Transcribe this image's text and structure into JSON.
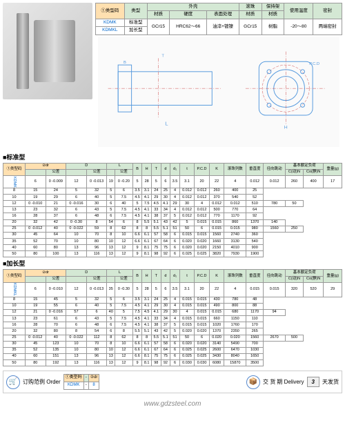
{
  "topTable": {
    "hdr1": [
      "①类型码",
      "类型",
      "外壳",
      "",
      "",
      "滚珠",
      "保持架",
      "使用温度",
      "密封"
    ],
    "hdr2": [
      "",
      "",
      "材质",
      "硬度",
      "表面处理",
      "材质",
      "材质",
      "(℃)",
      ""
    ],
    "r1": [
      "KDMK",
      "标准型",
      "GCr15",
      "HRC62～66",
      "油淬+镀镍",
      "GCr15",
      "树脂",
      "-20～80",
      "两端密封"
    ],
    "r2": [
      "KDMKL",
      "加长型",
      "",
      "",
      "",
      "",
      "",
      "",
      ""
    ]
  },
  "sec1Title": "■标准型",
  "sec2Title": "■加长型",
  "specHdr1": [
    "①类型码",
    "②dr",
    "",
    "D",
    "",
    "L",
    "",
    "B",
    "H",
    "T",
    "d",
    "d₁",
    "t",
    "P.C.D",
    "K",
    "滚珠列数",
    "垂直度",
    "径向跳动",
    "基本额定负荷",
    "",
    "重量(g)"
  ],
  "specHdr2": [
    "",
    "",
    "公差",
    "",
    "公差",
    "",
    "公差",
    "",
    "",
    "",
    "",
    "",
    "",
    "",
    "",
    "",
    "",
    "",
    "C(动)N",
    "Co(静)N",
    ""
  ],
  "spec1Rows": [
    [
      "KDMK",
      "6",
      "0 -0.009",
      "12",
      "0 -0.013",
      "19",
      "0 -0.20",
      "5",
      "28",
      "5",
      "6",
      "3.5",
      "3.1",
      "20",
      "22",
      "4",
      "0.012",
      "0.012",
      "260",
      "400",
      "17"
    ],
    [
      "",
      "8",
      "",
      "15",
      "",
      "24",
      "",
      "5",
      "32",
      "5",
      "6",
      "3.5",
      "3.1",
      "24",
      "25",
      "4",
      "0.012",
      "0.012",
      "260",
      "400",
      "25"
    ],
    [
      "",
      "10",
      "",
      "19",
      "",
      "29",
      "",
      "6",
      "40",
      "5",
      "7.5",
      "4.5",
      "4.1",
      "29",
      "30",
      "4",
      "0.012",
      "0.012",
      "370",
      "540",
      "52"
    ],
    [
      "",
      "12",
      "0 -0.010",
      "21",
      "0 -0.016",
      "30",
      "",
      "6",
      "40",
      "5",
      "7.5",
      "4.5",
      "4.1",
      "29",
      "30",
      "4",
      "0.012",
      "0.012",
      "510",
      "780",
      "50"
    ],
    [
      "",
      "13",
      "",
      "23",
      "",
      "32",
      "",
      "6",
      "43",
      "5",
      "7.5",
      "4.5",
      "4.1",
      "33",
      "34",
      "4",
      "0.012",
      "0.012",
      "500",
      "770",
      "64"
    ],
    [
      "",
      "16",
      "",
      "28",
      "",
      "37",
      "",
      "6",
      "48",
      "6",
      "7.5",
      "4.5",
      "4.1",
      "38",
      "37",
      "5",
      "0.012",
      "0.012",
      "770",
      "1170",
      "92"
    ],
    [
      "",
      "20",
      "",
      "32",
      "",
      "42",
      "0 -0.30",
      "8",
      "54",
      "6",
      "8",
      "5.5",
      "5.1",
      "43",
      "42",
      "5",
      "0.015",
      "0.015",
      "860",
      "1370",
      "140"
    ],
    [
      "",
      "25",
      "0 -0.012",
      "40",
      "0 -0.022",
      "59",
      "",
      "8",
      "62",
      "8",
      "8",
      "5.5",
      "5.1",
      "51",
      "50",
      "6",
      "0.015",
      "0.015",
      "980",
      "1560",
      "250"
    ],
    [
      "",
      "30",
      "",
      "45",
      "",
      "64",
      "",
      "10",
      "70",
      "8",
      "10",
      "6.6",
      "6.1",
      "57",
      "58",
      "6",
      "0.015",
      "0.015",
      "1560",
      "2740",
      "360"
    ],
    [
      "",
      "35",
      "",
      "52",
      "",
      "70",
      "",
      "10",
      "80",
      "10",
      "12",
      "6.6",
      "6.1",
      "67",
      "64",
      "6",
      "0.020",
      "0.020",
      "1660",
      "3130",
      "540"
    ],
    [
      "",
      "40",
      "",
      "60",
      "",
      "80",
      "",
      "13",
      "96",
      "13",
      "12",
      "9",
      "8.1",
      "75",
      "75",
      "6",
      "0.020",
      "0.020",
      "2150",
      "4010",
      "900"
    ],
    [
      "",
      "50",
      "",
      "80",
      "",
      "100",
      "",
      "13",
      "116",
      "13",
      "12",
      "9",
      "8.1",
      "98",
      "92",
      "6",
      "0.025",
      "0.025",
      "3820",
      "7930",
      "1900"
    ]
  ],
  "spec2Rows": [
    [
      "KDMKL",
      "6",
      "0 -0.010",
      "12",
      "0 -0.013",
      "35",
      "0 -0.30",
      "5",
      "28",
      "5",
      "6",
      "3.5",
      "3.1",
      "20",
      "22",
      "4",
      "0.015",
      "0.015",
      "320",
      "520",
      "29"
    ],
    [
      "",
      "8",
      "",
      "15",
      "",
      "45",
      "",
      "5",
      "32",
      "5",
      "6",
      "3.5",
      "3.1",
      "24",
      "25",
      "4",
      "0.015",
      "0.015",
      "430",
      "780",
      "48"
    ],
    [
      "",
      "10",
      "",
      "19",
      "",
      "55",
      "",
      "6",
      "40",
      "5",
      "7.5",
      "4.5",
      "4.1",
      "29",
      "30",
      "4",
      "0.015",
      "0.015",
      "490",
      "800",
      "88"
    ],
    [
      "",
      "12",
      "",
      "21",
      "0 -0.016",
      "57",
      "",
      "6",
      "40",
      "5",
      "7.5",
      "4.5",
      "4.1",
      "29",
      "30",
      "4",
      "0.015",
      "0.015",
      "680",
      "1170",
      "94"
    ],
    [
      "",
      "13",
      "",
      "23",
      "",
      "61",
      "",
      "6",
      "43",
      "5",
      "7.5",
      "4.5",
      "4.1",
      "33",
      "34",
      "4",
      "0.015",
      "0.015",
      "660",
      "1150",
      "110"
    ],
    [
      "",
      "16",
      "",
      "28",
      "",
      "70",
      "",
      "6",
      "48",
      "6",
      "7.5",
      "4.5",
      "4.1",
      "38",
      "37",
      "5",
      "0.015",
      "0.015",
      "1020",
      "1760",
      "170"
    ],
    [
      "",
      "20",
      "",
      "32",
      "",
      "80",
      "",
      "8",
      "54",
      "6",
      "8",
      "5.5",
      "5.1",
      "43",
      "42",
      "5",
      "0.020",
      "0.020",
      "1370",
      "2350",
      "265"
    ],
    [
      "",
      "25",
      "0 -0.012",
      "40",
      "0 -0.022",
      "112",
      "",
      "8",
      "62",
      "8",
      "8",
      "5.5",
      "5.1",
      "51",
      "50",
      "6",
      "0.020",
      "0.020",
      "1560",
      "2670",
      "500"
    ],
    [
      "",
      "30",
      "",
      "45",
      "",
      "123",
      "",
      "10",
      "70",
      "8",
      "10",
      "6.6",
      "6.1",
      "57",
      "58",
      "6",
      "0.020",
      "0.020",
      "3140",
      "5490",
      "700"
    ],
    [
      "",
      "35",
      "",
      "52",
      "",
      "135",
      "",
      "10",
      "80",
      "10",
      "12",
      "6.6",
      "6.1",
      "67",
      "64",
      "6",
      "0.025",
      "0.025",
      "2600",
      "6470",
      "1030"
    ],
    [
      "",
      "40",
      "",
      "60",
      "",
      "151",
      "",
      "13",
      "96",
      "13",
      "12",
      "6.6",
      "8.1",
      "75",
      "75",
      "6",
      "0.025",
      "0.025",
      "3430",
      "8040",
      "1650"
    ],
    [
      "",
      "50",
      "",
      "80",
      "",
      "192",
      "",
      "13",
      "116",
      "13",
      "12",
      "9",
      "8.1",
      "98",
      "92",
      "6",
      "0.030",
      "0.030",
      "6080",
      "15870",
      "3500"
    ]
  ],
  "footer": {
    "orderLabel": "订购范例 Order",
    "orderT1": "①类型码",
    "orderT2": "-",
    "orderT3": "②dr",
    "orderV1": "KDMK",
    "orderV2": "-",
    "orderV3": "8",
    "deliveryLabel": "交 货 期 Delivery",
    "deliveryDays": "3",
    "deliveryText": "天发货"
  },
  "url": "www.gdzsteel.com"
}
